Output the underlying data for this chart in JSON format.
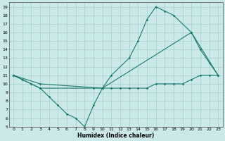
{
  "xlabel": "Humidex (Indice chaleur)",
  "bg_color": "#cce9e9",
  "grid_color": "#aad4d4",
  "line_color": "#1a7a6e",
  "xlim": [
    -0.5,
    23.5
  ],
  "ylim": [
    5,
    19.5
  ],
  "xticks": [
    0,
    1,
    2,
    3,
    4,
    5,
    6,
    7,
    8,
    9,
    10,
    11,
    12,
    13,
    14,
    15,
    16,
    17,
    18,
    19,
    20,
    21,
    22,
    23
  ],
  "yticks": [
    5,
    6,
    7,
    8,
    9,
    10,
    11,
    12,
    13,
    14,
    15,
    16,
    17,
    18,
    19
  ],
  "line1_x": [
    0,
    1,
    3,
    4,
    5,
    6,
    7,
    8,
    9,
    10,
    11,
    13,
    14,
    15,
    16,
    17,
    18,
    20,
    21,
    22,
    23
  ],
  "line1_y": [
    11,
    10.5,
    9.5,
    8.5,
    7.5,
    6.5,
    6.0,
    5.0,
    7.5,
    9.5,
    11.0,
    13.0,
    15.0,
    17.5,
    19.0,
    18.5,
    18.0,
    16.0,
    14.0,
    12.5,
    11.0
  ],
  "line2_x": [
    0,
    3,
    10,
    20,
    23
  ],
  "line2_y": [
    11,
    10.0,
    9.5,
    16.0,
    11.0
  ],
  "line3_x": [
    0,
    1,
    2,
    3,
    9,
    10,
    11,
    12,
    13,
    14,
    15,
    16,
    17,
    18,
    19,
    20,
    21,
    22,
    23
  ],
  "line3_y": [
    11,
    10.5,
    10.0,
    9.5,
    9.5,
    9.5,
    9.5,
    9.5,
    9.5,
    9.5,
    9.5,
    10.0,
    10.0,
    10.0,
    10.0,
    10.5,
    11.0,
    11.0,
    11.0
  ]
}
